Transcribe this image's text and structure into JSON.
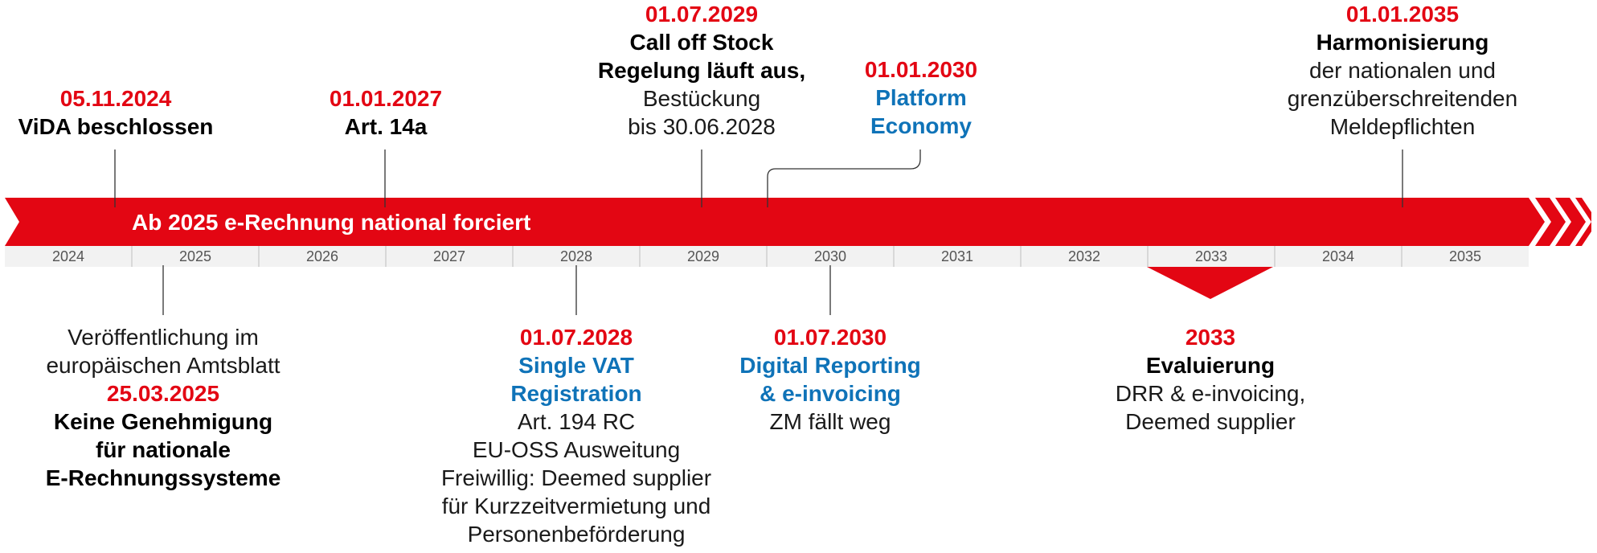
{
  "banner": {
    "text": "Ab 2025 e-Rechnung national forciert"
  },
  "years": [
    "2024",
    "2025",
    "2026",
    "2027",
    "2028",
    "2029",
    "2030",
    "2031",
    "2032",
    "2033",
    "2034",
    "2035"
  ],
  "colors": {
    "red": "#e30613",
    "blue": "#0f73b8",
    "band": "#f2f2f2",
    "text": "#1a1a1a"
  },
  "events": {
    "vida": {
      "date": "05.11.2024",
      "title": "ViDA beschlossen"
    },
    "art14a": {
      "date": "01.01.2027",
      "title": "Art. 14a"
    },
    "callOff": {
      "date": "01.07.2029",
      "title1": "Call off Stock",
      "title2": "Regelung läuft aus,",
      "text1": "Bestückung",
      "text2": "bis 30.06.2028"
    },
    "platform": {
      "date": "01.01.2030",
      "title1": "Platform",
      "title2": "Economy"
    },
    "harm": {
      "date": "01.01.2035",
      "title": "Harmonisierung",
      "text1": "der nationalen und",
      "text2": "grenzüberschreitenden",
      "text3": "Meldepflichten"
    },
    "publ": {
      "text1": "Veröffentlichung im",
      "text2": "europäischen Amtsblatt",
      "date": "25.03.2025",
      "title1": "Keine Genehmigung",
      "title2": "für nationale",
      "title3": "E-Rechnungssysteme"
    },
    "svat": {
      "date": "01.07.2028",
      "title1": "Single VAT",
      "title2": "Registration",
      "text1": "Art. 194 RC",
      "text2": "EU-OSS Ausweitung",
      "text3": "Freiwillig: Deemed supplier",
      "text4": "für Kurzzeitvermietung und",
      "text5": "Personenbeförderung"
    },
    "drr": {
      "date": "01.07.2030",
      "title1": "Digital Reporting",
      "title2": "& e-invoicing",
      "text1": "ZM fällt weg"
    },
    "eval": {
      "date": "2033",
      "title": "Evaluierung",
      "text1": "DRR & e-invoicing,",
      "text2": "Deemed supplier"
    }
  }
}
